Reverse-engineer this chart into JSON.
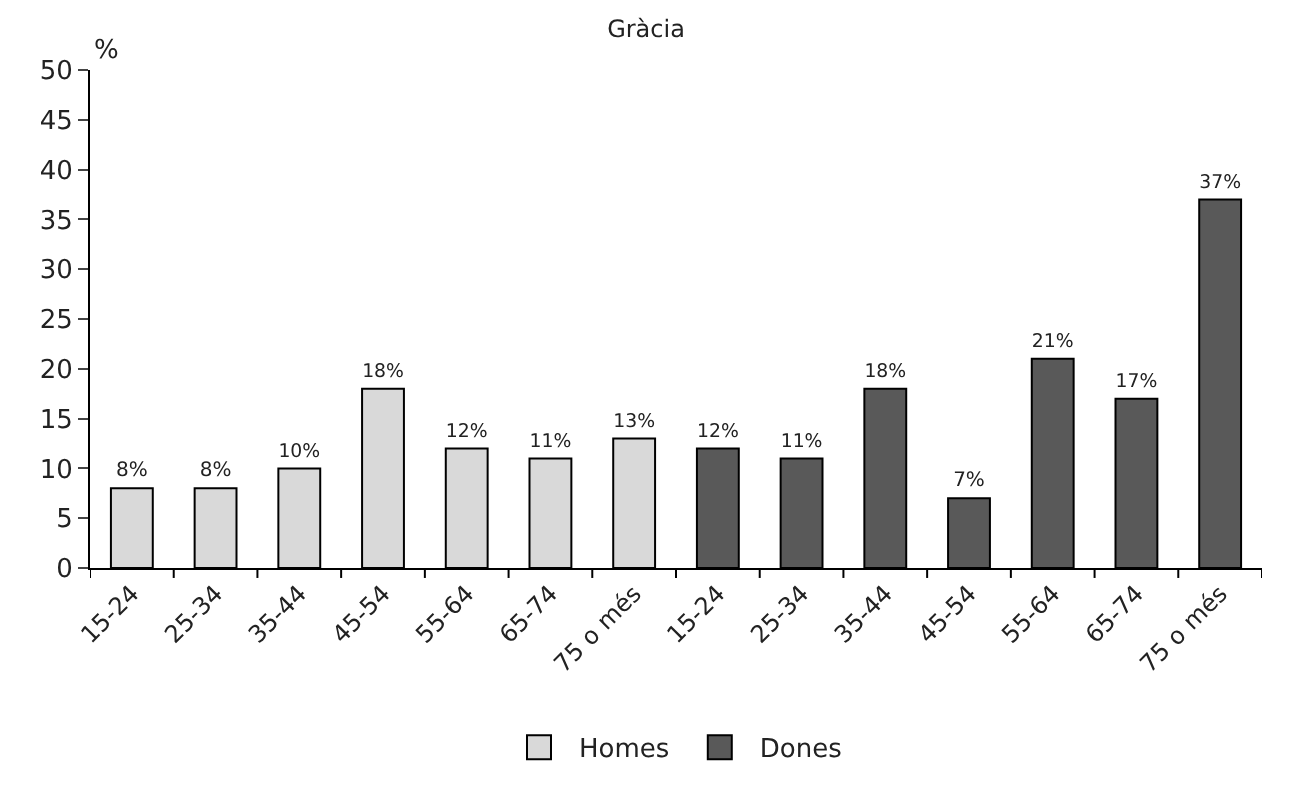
{
  "chart_data": {
    "type": "bar",
    "title": "Gràcia",
    "ylabel": "%",
    "categories": [
      "15-24",
      "25-34",
      "35-44",
      "45-54",
      "55-64",
      "65-74",
      "75 o més",
      "15-24",
      "25-34",
      "35-44",
      "45-54",
      "55-64",
      "65-74",
      "75 o més"
    ],
    "series": [
      {
        "name": "Homes",
        "color": "#d9d9d9",
        "values": [
          8,
          8,
          10,
          18,
          12,
          11,
          13,
          null,
          null,
          null,
          null,
          null,
          null,
          null
        ],
        "value_labels": [
          "8%",
          "8%",
          "10%",
          "18%",
          "12%",
          "11%",
          "13%",
          null,
          null,
          null,
          null,
          null,
          null,
          null
        ]
      },
      {
        "name": "Dones",
        "color": "#595959",
        "values": [
          null,
          null,
          null,
          null,
          null,
          null,
          null,
          12,
          11,
          18,
          7,
          21,
          17,
          37
        ],
        "value_labels": [
          null,
          null,
          null,
          null,
          null,
          null,
          null,
          "12%",
          "11%",
          "18%",
          "7%",
          "21%",
          "17%",
          "37%"
        ]
      }
    ],
    "ylim": [
      0,
      50
    ],
    "yticks": [
      0,
      5,
      10,
      15,
      20,
      25,
      30,
      35,
      40,
      45,
      50
    ],
    "legend": "bottom"
  }
}
